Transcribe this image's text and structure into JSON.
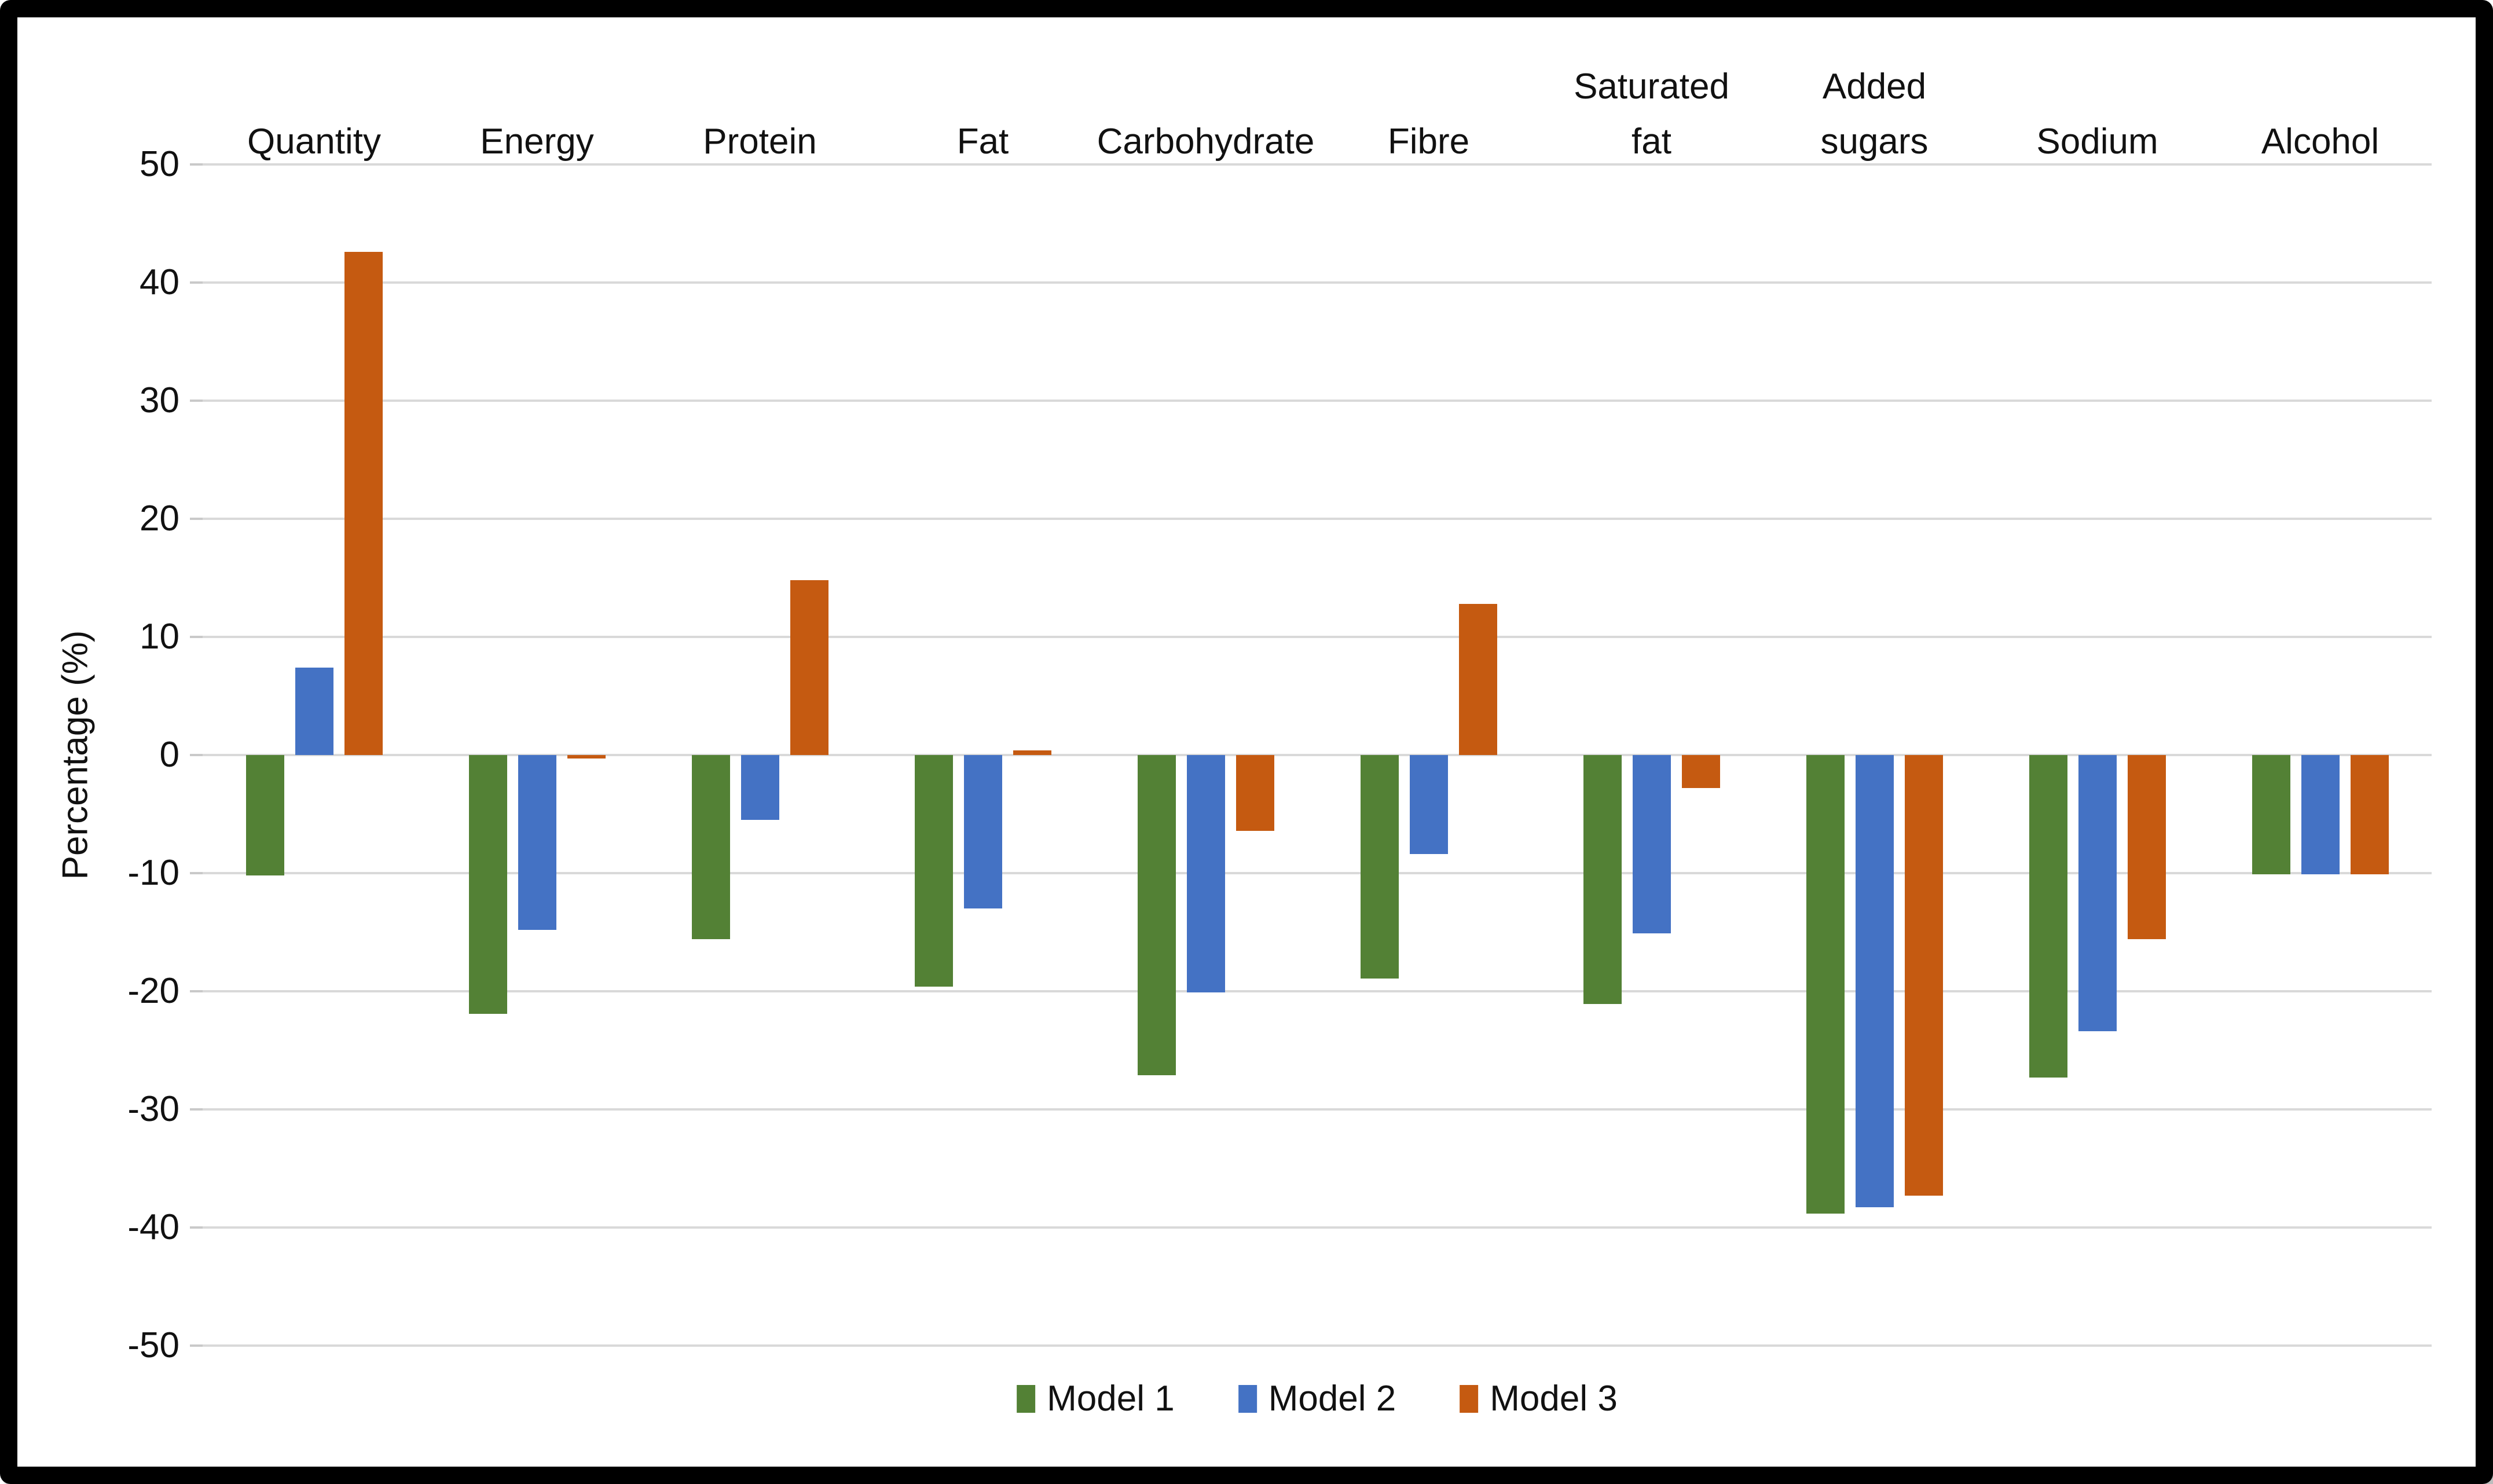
{
  "frame": {
    "border_color": "#000000",
    "background": "#ffffff"
  },
  "chart_data": {
    "type": "bar",
    "title": "",
    "xlabel": "",
    "ylabel": "Percentage (%)",
    "ylim": [
      -50,
      50
    ],
    "ytick_step": 10,
    "yticks": [
      50,
      40,
      30,
      20,
      10,
      0,
      -10,
      -20,
      -30,
      -40,
      -50
    ],
    "grid": true,
    "gridline_color": "#d9d9d9",
    "text_color": "#111111",
    "legend_position": "bottom-center",
    "categories": [
      "Quantity",
      "Energy",
      "Protein",
      "Fat",
      "Carbohydrate",
      "Fibre",
      "Saturated fat",
      "Added sugars",
      "Sodium",
      "Alcohol"
    ],
    "category_label_lines": [
      [
        "Quantity"
      ],
      [
        "Energy"
      ],
      [
        "Protein"
      ],
      [
        "Fat"
      ],
      [
        "Carbohydrate"
      ],
      [
        "Fibre"
      ],
      [
        "Saturated",
        "fat"
      ],
      [
        "Added",
        "sugars"
      ],
      [
        "Sodium"
      ],
      [
        "Alcohol"
      ]
    ],
    "series": [
      {
        "name": "Model 1",
        "color": "#538135",
        "values": [
          -10.2,
          -21.9,
          -15.6,
          -19.6,
          -27.1,
          -18.9,
          -21.1,
          -38.8,
          -27.3,
          -10.1
        ]
      },
      {
        "name": "Model 2",
        "color": "#4472C4",
        "values": [
          7.4,
          -14.8,
          -5.5,
          -13.0,
          -20.1,
          -8.4,
          -15.1,
          -38.3,
          -23.4,
          -10.1
        ]
      },
      {
        "name": "Model 3",
        "color": "#C55A11",
        "values": [
          42.6,
          -0.3,
          14.8,
          0.4,
          -6.4,
          12.8,
          -2.8,
          -37.3,
          -15.6,
          -10.1
        ]
      }
    ]
  }
}
